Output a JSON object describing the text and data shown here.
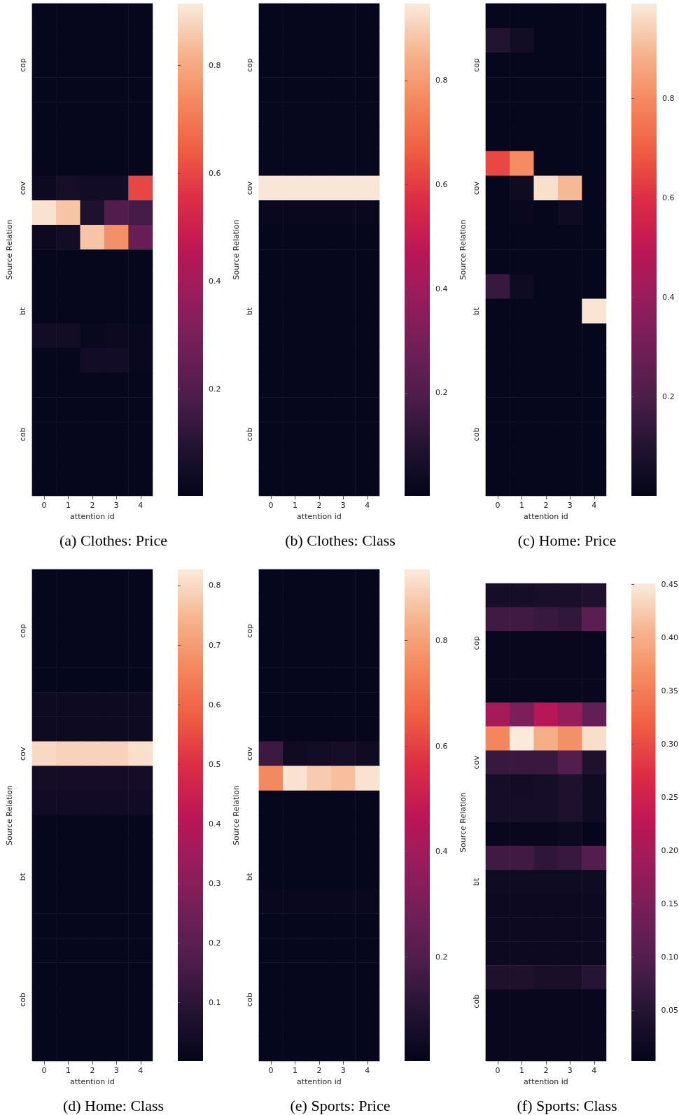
{
  "chart_data": [
    {
      "type": "heatmap",
      "title": "(a) Clothes: Price",
      "xlabel": "attention id",
      "ylabel": "Source Relation",
      "categories": [
        "0",
        "1",
        "2",
        "3",
        "4"
      ],
      "y_categories": [
        null,
        null,
        "cop",
        null,
        null,
        null,
        null,
        "cov",
        null,
        null,
        null,
        null,
        "bt",
        null,
        null,
        null,
        null,
        "cob",
        null,
        null
      ],
      "clim": [
        0.002,
        0.915
      ],
      "cticks": [
        0.2,
        0.4,
        0.6,
        0.8
      ],
      "cells": [
        [
          0.01,
          0.01,
          0.01,
          0.01,
          0.01
        ],
        [
          0.01,
          0.01,
          0.01,
          0.01,
          0.01
        ],
        [
          0.01,
          0.01,
          0.01,
          0.01,
          0.01
        ],
        [
          0.01,
          0.01,
          0.01,
          0.01,
          0.01
        ],
        [
          0.01,
          0.01,
          0.01,
          0.01,
          0.01
        ],
        [
          0.01,
          0.01,
          0.01,
          0.01,
          0.01
        ],
        [
          0.01,
          0.01,
          0.01,
          0.01,
          0.01
        ],
        [
          0.03,
          0.06,
          0.05,
          0.05,
          0.6
        ],
        [
          0.9,
          0.85,
          0.08,
          0.2,
          0.17
        ],
        [
          0.03,
          0.05,
          0.85,
          0.75,
          0.25
        ],
        [
          0.01,
          0.01,
          0.01,
          0.01,
          0.01
        ],
        [
          0.01,
          0.01,
          0.01,
          0.01,
          0.01
        ],
        [
          0.01,
          0.01,
          0.01,
          0.01,
          0.01
        ],
        [
          0.05,
          0.05,
          0.02,
          0.03,
          0.02
        ],
        [
          0.01,
          0.01,
          0.05,
          0.05,
          0.02
        ],
        [
          0.01,
          0.01,
          0.01,
          0.01,
          0.01
        ],
        [
          0.01,
          0.01,
          0.01,
          0.01,
          0.01
        ],
        [
          0.01,
          0.01,
          0.01,
          0.01,
          0.01
        ],
        [
          0.01,
          0.01,
          0.01,
          0.01,
          0.01
        ],
        [
          0.01,
          0.01,
          0.01,
          0.01,
          0.01
        ]
      ]
    },
    {
      "type": "heatmap",
      "title": "(b) Clothes: Class",
      "xlabel": "attention id",
      "ylabel": "Source Relation",
      "categories": [
        "0",
        "1",
        "2",
        "3",
        "4"
      ],
      "y_categories": [
        null,
        null,
        "cop",
        null,
        null,
        null,
        null,
        "cov",
        null,
        null,
        null,
        null,
        "bt",
        null,
        null,
        null,
        null,
        "cob",
        null,
        null
      ],
      "clim": [
        0.002,
        0.948
      ],
      "cticks": [
        0.2,
        0.4,
        0.6,
        0.8
      ],
      "cells": [
        [
          0.01,
          0.01,
          0.01,
          0.01,
          0.01
        ],
        [
          0.01,
          0.01,
          0.01,
          0.01,
          0.01
        ],
        [
          0.01,
          0.01,
          0.01,
          0.01,
          0.01
        ],
        [
          0.01,
          0.01,
          0.01,
          0.01,
          0.01
        ],
        [
          0.015,
          0.015,
          0.015,
          0.015,
          0.015
        ],
        [
          0.015,
          0.015,
          0.015,
          0.015,
          0.015
        ],
        [
          0.015,
          0.015,
          0.015,
          0.015,
          0.015
        ],
        [
          0.94,
          0.94,
          0.94,
          0.94,
          0.94
        ],
        [
          0.02,
          0.02,
          0.02,
          0.02,
          0.02
        ],
        [
          0.01,
          0.01,
          0.01,
          0.01,
          0.01
        ],
        [
          0.01,
          0.01,
          0.01,
          0.01,
          0.01
        ],
        [
          0.01,
          0.01,
          0.01,
          0.01,
          0.01
        ],
        [
          0.01,
          0.01,
          0.01,
          0.01,
          0.01
        ],
        [
          0.01,
          0.01,
          0.01,
          0.01,
          0.01
        ],
        [
          0.01,
          0.01,
          0.01,
          0.01,
          0.01
        ],
        [
          0.01,
          0.01,
          0.01,
          0.01,
          0.01
        ],
        [
          0.01,
          0.01,
          0.01,
          0.01,
          0.01
        ],
        [
          0.01,
          0.01,
          0.01,
          0.01,
          0.01
        ],
        [
          0.01,
          0.01,
          0.01,
          0.01,
          0.01
        ],
        [
          0.01,
          0.01,
          0.01,
          0.01,
          0.01
        ]
      ]
    },
    {
      "type": "heatmap",
      "title": "(c) Home: Price",
      "xlabel": "attention id",
      "ylabel": "Source Relation",
      "categories": [
        "0",
        "1",
        "2",
        "3",
        "4"
      ],
      "y_categories": [
        null,
        null,
        "cop",
        null,
        null,
        null,
        null,
        "cov",
        null,
        null,
        null,
        null,
        "bt",
        null,
        null,
        null,
        null,
        "cob",
        null,
        null
      ],
      "clim": [
        0.001,
        0.99
      ],
      "cticks": [
        0.2,
        0.4,
        0.6,
        0.8
      ],
      "cells": [
        [
          0.01,
          0.01,
          0.01,
          0.01,
          0.01
        ],
        [
          0.1,
          0.05,
          0.01,
          0.01,
          0.01
        ],
        [
          0.01,
          0.01,
          0.01,
          0.01,
          0.01
        ],
        [
          0.01,
          0.01,
          0.01,
          0.01,
          0.01
        ],
        [
          0.01,
          0.01,
          0.01,
          0.01,
          0.01
        ],
        [
          0.01,
          0.01,
          0.01,
          0.01,
          0.01
        ],
        [
          0.65,
          0.8,
          0.01,
          0.01,
          0.01
        ],
        [
          0.01,
          0.04,
          0.97,
          0.9,
          0.01
        ],
        [
          0.01,
          0.02,
          0.01,
          0.04,
          0.01
        ],
        [
          0.01,
          0.01,
          0.01,
          0.01,
          0.01
        ],
        [
          0.01,
          0.01,
          0.01,
          0.01,
          0.01
        ],
        [
          0.15,
          0.04,
          0.01,
          0.01,
          0.01
        ],
        [
          0.01,
          0.01,
          0.01,
          0.01,
          0.98
        ],
        [
          0.01,
          0.01,
          0.01,
          0.01,
          0.01
        ],
        [
          0.01,
          0.01,
          0.01,
          0.01,
          0.01
        ],
        [
          0.01,
          0.01,
          0.01,
          0.01,
          0.01
        ],
        [
          0.01,
          0.01,
          0.01,
          0.01,
          0.01
        ],
        [
          0.01,
          0.01,
          0.01,
          0.01,
          0.01
        ],
        [
          0.01,
          0.01,
          0.01,
          0.01,
          0.01
        ],
        [
          0.01,
          0.01,
          0.01,
          0.01,
          0.01
        ]
      ]
    },
    {
      "type": "heatmap",
      "title": "(d) Home: Class",
      "xlabel": "attention id",
      "ylabel": "Source Relation",
      "categories": [
        "0",
        "1",
        "2",
        "3",
        "4"
      ],
      "y_categories": [
        null,
        null,
        "cop",
        null,
        null,
        null,
        null,
        "cov",
        null,
        null,
        null,
        null,
        "bt",
        null,
        null,
        null,
        null,
        "cob",
        null,
        null
      ],
      "clim": [
        0.002,
        0.827
      ],
      "cticks": [
        0.1,
        0.2,
        0.3,
        0.4,
        0.5,
        0.6,
        0.7,
        0.8
      ],
      "cells": [
        [
          0.01,
          0.01,
          0.01,
          0.01,
          0.01
        ],
        [
          0.01,
          0.01,
          0.01,
          0.01,
          0.01
        ],
        [
          0.01,
          0.01,
          0.01,
          0.01,
          0.01
        ],
        [
          0.01,
          0.01,
          0.01,
          0.01,
          0.01
        ],
        [
          0.01,
          0.01,
          0.01,
          0.01,
          0.01
        ],
        [
          0.03,
          0.03,
          0.03,
          0.03,
          0.03
        ],
        [
          0.03,
          0.03,
          0.03,
          0.03,
          0.03
        ],
        [
          0.8,
          0.79,
          0.79,
          0.79,
          0.81
        ],
        [
          0.05,
          0.05,
          0.05,
          0.05,
          0.05
        ],
        [
          0.04,
          0.04,
          0.04,
          0.04,
          0.04
        ],
        [
          0.01,
          0.01,
          0.01,
          0.01,
          0.01
        ],
        [
          0.01,
          0.01,
          0.01,
          0.01,
          0.01
        ],
        [
          0.01,
          0.01,
          0.01,
          0.01,
          0.01
        ],
        [
          0.01,
          0.01,
          0.01,
          0.01,
          0.01
        ],
        [
          0.01,
          0.01,
          0.01,
          0.01,
          0.01
        ],
        [
          0.01,
          0.01,
          0.01,
          0.01,
          0.01
        ],
        [
          0.01,
          0.01,
          0.01,
          0.01,
          0.01
        ],
        [
          0.01,
          0.01,
          0.01,
          0.01,
          0.01
        ],
        [
          0.01,
          0.01,
          0.01,
          0.01,
          0.01
        ],
        [
          0.01,
          0.01,
          0.01,
          0.01,
          0.01
        ]
      ]
    },
    {
      "type": "heatmap",
      "title": "(e) Sports: Price",
      "xlabel": "attention id",
      "ylabel": "Source Relation",
      "categories": [
        "0",
        "1",
        "2",
        "3",
        "4"
      ],
      "y_categories": [
        null,
        null,
        "cop",
        null,
        null,
        null,
        null,
        "cov",
        null,
        null,
        null,
        null,
        "bt",
        null,
        null,
        null,
        null,
        "cob",
        null,
        null
      ],
      "clim": [
        0.002,
        0.935
      ],
      "cticks": [
        0.2,
        0.4,
        0.6,
        0.8
      ],
      "cells": [
        [
          0.01,
          0.01,
          0.01,
          0.01,
          0.01
        ],
        [
          0.01,
          0.01,
          0.01,
          0.01,
          0.01
        ],
        [
          0.01,
          0.01,
          0.01,
          0.01,
          0.01
        ],
        [
          0.01,
          0.01,
          0.01,
          0.01,
          0.01
        ],
        [
          0.01,
          0.01,
          0.01,
          0.01,
          0.01
        ],
        [
          0.01,
          0.01,
          0.01,
          0.01,
          0.01
        ],
        [
          0.01,
          0.01,
          0.01,
          0.01,
          0.01
        ],
        [
          0.15,
          0.04,
          0.05,
          0.06,
          0.04
        ],
        [
          0.75,
          0.92,
          0.88,
          0.86,
          0.92
        ],
        [
          0.01,
          0.01,
          0.01,
          0.01,
          0.01
        ],
        [
          0.01,
          0.01,
          0.01,
          0.01,
          0.01
        ],
        [
          0.01,
          0.01,
          0.01,
          0.01,
          0.01
        ],
        [
          0.01,
          0.01,
          0.01,
          0.01,
          0.01
        ],
        [
          0.02,
          0.02,
          0.02,
          0.02,
          0.02
        ],
        [
          0.01,
          0.01,
          0.01,
          0.01,
          0.01
        ],
        [
          0.01,
          0.01,
          0.01,
          0.01,
          0.01
        ],
        [
          0.01,
          0.01,
          0.01,
          0.01,
          0.01
        ],
        [
          0.01,
          0.01,
          0.01,
          0.01,
          0.01
        ],
        [
          0.01,
          0.01,
          0.01,
          0.01,
          0.01
        ],
        [
          0.01,
          0.01,
          0.01,
          0.01,
          0.01
        ]
      ]
    },
    {
      "type": "heatmap",
      "title": "(f) Sports: Class",
      "xlabel": "attention id",
      "ylabel": "Source Relation",
      "categories": [
        "0",
        "1",
        "2",
        "3",
        "4"
      ],
      "y_categories": [
        null,
        null,
        "cop",
        null,
        null,
        null,
        null,
        "cov",
        null,
        null,
        null,
        null,
        "bt",
        null,
        null,
        null,
        null,
        "cob",
        null,
        null
      ],
      "clim": [
        0.002,
        0.451
      ],
      "cticks": [
        0.05,
        {
          "value": 0.1,
          "label": "0.10"
        },
        0.15,
        {
          "value": 0.2,
          "label": "0.20"
        },
        0.25,
        {
          "value": 0.3,
          "label": "0.30"
        },
        0.35,
        {
          "value": 0.4,
          "label": "0.40"
        },
        0.45
      ],
      "cells": [
        [
          0.03,
          0.03,
          0.035,
          0.035,
          0.04
        ],
        [
          0.08,
          0.08,
          0.07,
          0.065,
          0.11
        ],
        [
          0.01,
          0.01,
          0.01,
          0.01,
          0.01
        ],
        [
          0.01,
          0.01,
          0.01,
          0.01,
          0.01
        ],
        [
          0.01,
          0.01,
          0.01,
          0.01,
          0.01
        ],
        [
          0.2,
          0.15,
          0.22,
          0.18,
          0.12
        ],
        [
          0.36,
          0.45,
          0.4,
          0.37,
          0.44
        ],
        [
          0.07,
          0.07,
          0.07,
          0.1,
          0.04
        ],
        [
          0.03,
          0.025,
          0.03,
          0.04,
          0.02
        ],
        [
          0.03,
          0.03,
          0.03,
          0.04,
          0.02
        ],
        [
          0.01,
          0.01,
          0.01,
          0.015,
          0.005
        ],
        [
          0.08,
          0.08,
          0.06,
          0.07,
          0.1
        ],
        [
          0.02,
          0.02,
          0.02,
          0.02,
          0.02
        ],
        [
          0.015,
          0.015,
          0.015,
          0.015,
          0.015
        ],
        [
          0.015,
          0.015,
          0.015,
          0.015,
          0.015
        ],
        [
          0.015,
          0.015,
          0.015,
          0.015,
          0.015
        ],
        [
          0.04,
          0.04,
          0.035,
          0.035,
          0.05
        ],
        [
          0.01,
          0.01,
          0.01,
          0.01,
          0.01
        ],
        [
          0.01,
          0.01,
          0.01,
          0.01,
          0.01
        ],
        [
          0.01,
          0.01,
          0.01,
          0.01,
          0.01
        ]
      ]
    }
  ]
}
